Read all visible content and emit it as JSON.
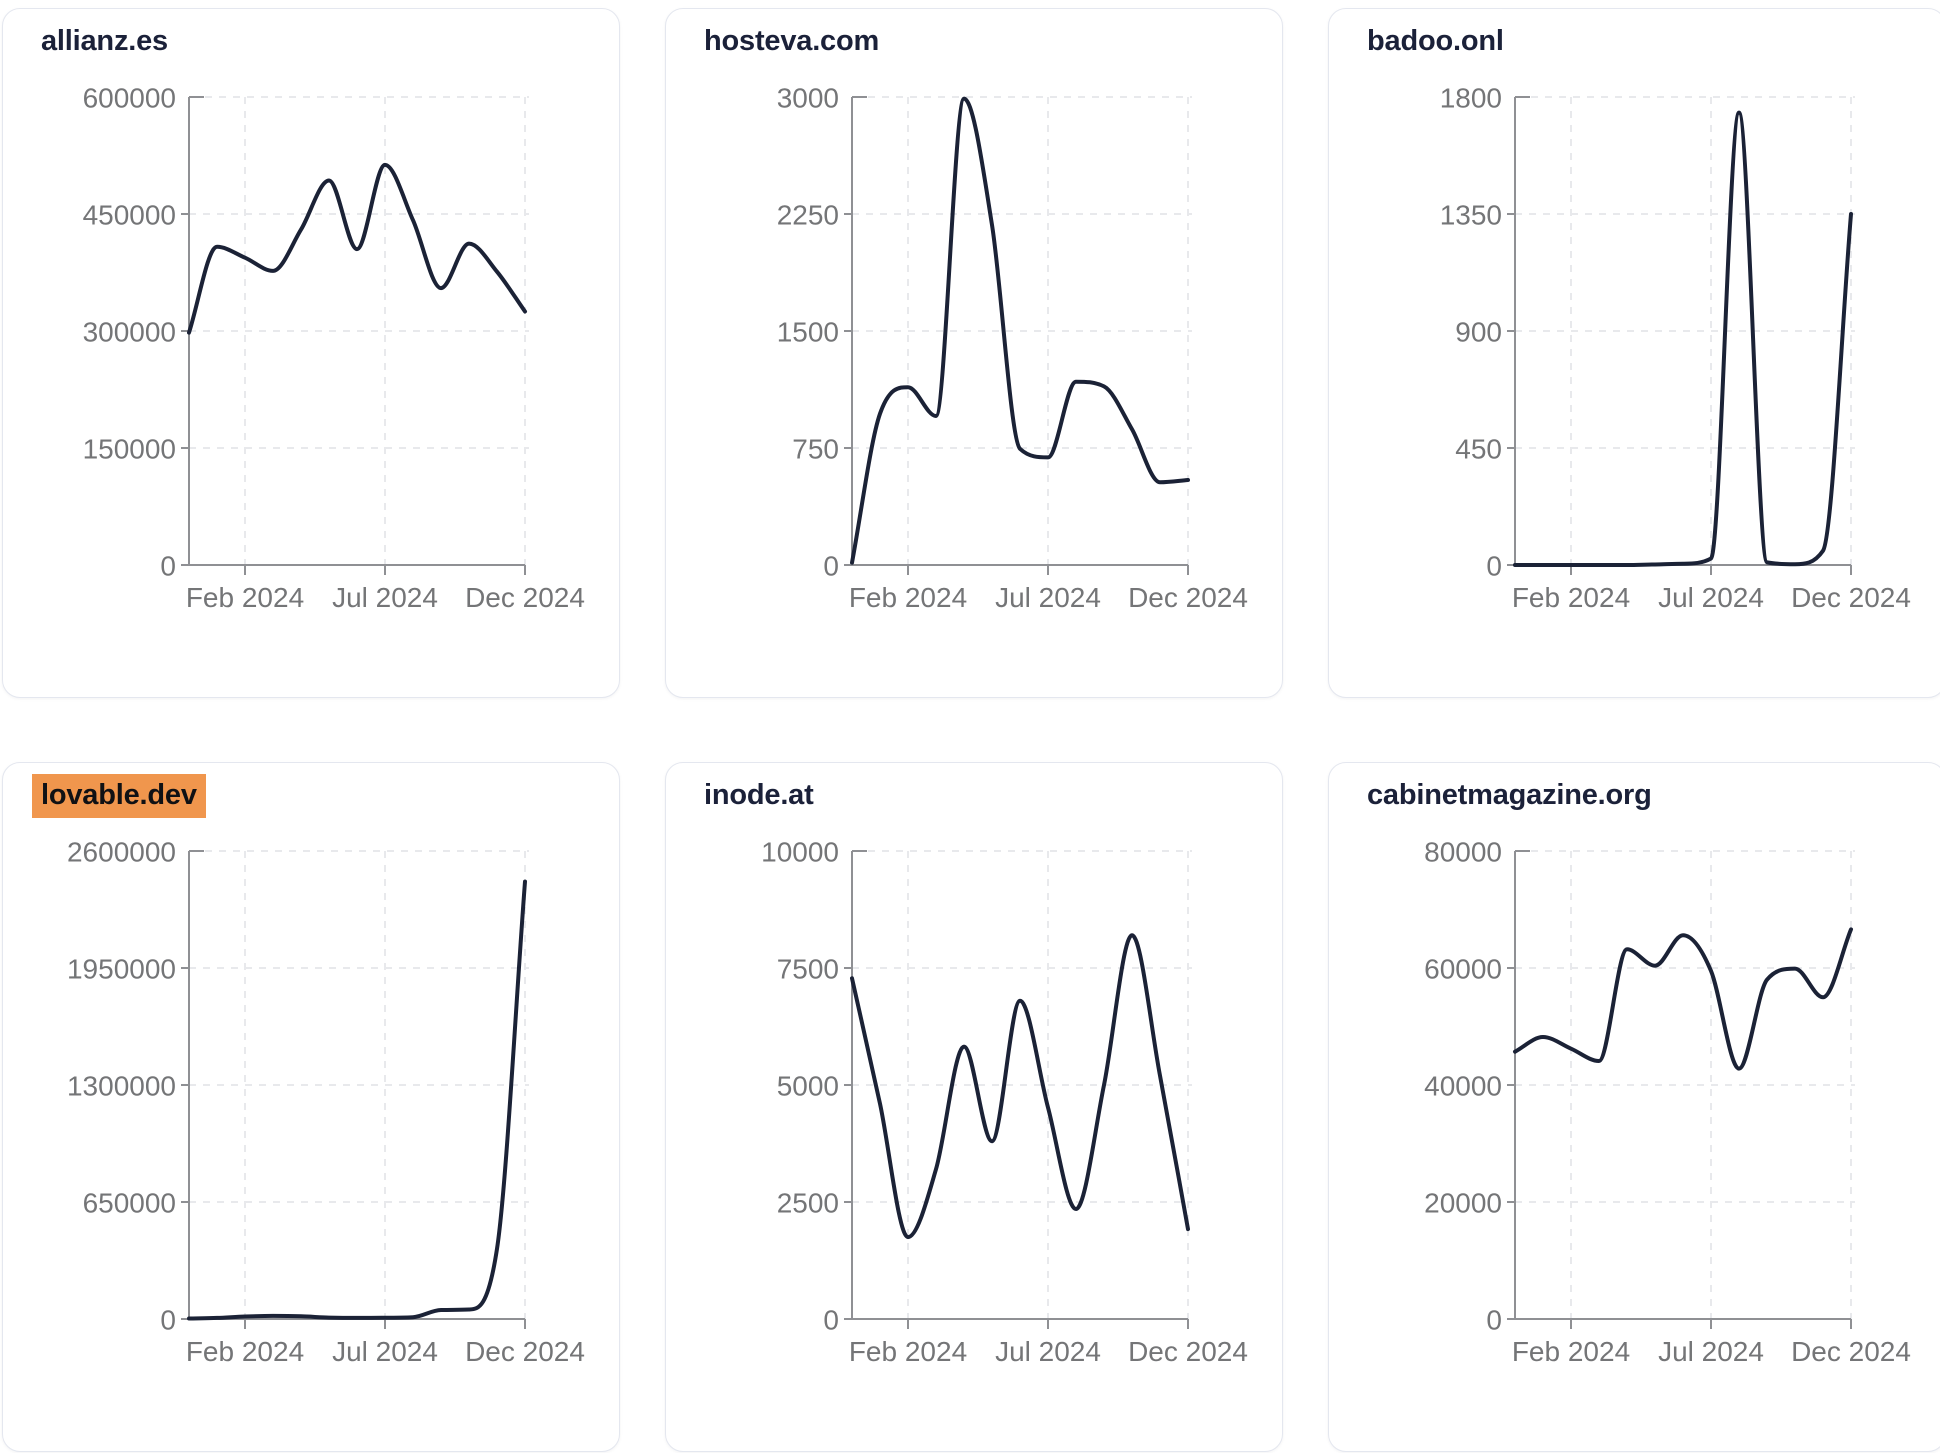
{
  "style": {
    "page_bg": "#ffffff",
    "card_bg": "#ffffff",
    "card_border": "#e4e7ef",
    "title_color": "#1b2139",
    "line_color": "#1b2236",
    "axis_color": "#8f9094",
    "grid_color": "#e8e9ec",
    "tick_label_color": "#747577",
    "highlight_bg": "#f0964d",
    "highlight_text": "#101114"
  },
  "chart_data": [
    {
      "type": "line",
      "title": "allianz.es",
      "title_highlighted": false,
      "x_range_months": [
        "2023-12",
        "2024-12"
      ],
      "months": [
        "2023-12",
        "2024-01",
        "2024-02",
        "2024-03",
        "2024-04",
        "2024-05",
        "2024-06",
        "2024-07",
        "2024-08",
        "2024-09",
        "2024-10",
        "2024-11",
        "2024-12"
      ],
      "values": [
        298000,
        408000,
        394000,
        377000,
        430000,
        493000,
        405000,
        513000,
        442000,
        355000,
        412000,
        376000,
        325000
      ],
      "ylim": [
        0,
        600000
      ],
      "y_ticks": [
        0,
        150000,
        300000,
        450000,
        600000
      ],
      "x_tick_labels": [
        "Feb 2024",
        "Jul 2024",
        "Dec 2024"
      ],
      "x_tick_month_index": [
        2,
        7,
        12
      ],
      "grid": true,
      "legend": "none"
    },
    {
      "type": "line",
      "title": "hosteva.com",
      "title_highlighted": false,
      "x_range_months": [
        "2023-12",
        "2024-12"
      ],
      "months": [
        "2023-12",
        "2024-01",
        "2024-02",
        "2024-03",
        "2024-04",
        "2024-05",
        "2024-06",
        "2024-07",
        "2024-08",
        "2024-09",
        "2024-10",
        "2024-11",
        "2024-12"
      ],
      "values": [
        15,
        970,
        1140,
        955,
        2990,
        2180,
        745,
        690,
        1175,
        1145,
        870,
        530,
        545
      ],
      "ylim": [
        0,
        3000
      ],
      "y_ticks": [
        0,
        750,
        1500,
        2250,
        3000
      ],
      "x_tick_labels": [
        "Feb 2024",
        "Jul 2024",
        "Dec 2024"
      ],
      "x_tick_month_index": [
        2,
        7,
        12
      ],
      "grid": true,
      "legend": "none"
    },
    {
      "type": "line",
      "title": "badoo.onl",
      "title_highlighted": false,
      "x_range_months": [
        "2023-12",
        "2024-12"
      ],
      "months": [
        "2023-12",
        "2024-01",
        "2024-02",
        "2024-03",
        "2024-04",
        "2024-05",
        "2024-06",
        "2024-07",
        "2024-08",
        "2024-09",
        "2024-10",
        "2024-11",
        "2024-12"
      ],
      "values": [
        0,
        0,
        0,
        0,
        0,
        2,
        5,
        25,
        1740,
        10,
        3,
        55,
        1350
      ],
      "ylim": [
        0,
        1800
      ],
      "y_ticks": [
        0,
        450,
        900,
        1350,
        1800
      ],
      "x_tick_labels": [
        "Feb 2024",
        "Jul 2024",
        "Dec 2024"
      ],
      "x_tick_month_index": [
        2,
        7,
        12
      ],
      "grid": true,
      "legend": "none"
    },
    {
      "type": "line",
      "title": "lovable.dev",
      "title_highlighted": true,
      "x_range_months": [
        "2023-12",
        "2024-12"
      ],
      "months": [
        "2023-12",
        "2024-01",
        "2024-02",
        "2024-03",
        "2024-04",
        "2024-05",
        "2024-06",
        "2024-07",
        "2024-08",
        "2024-09",
        "2024-10",
        "2024-11",
        "2024-12"
      ],
      "values": [
        3000,
        6000,
        14000,
        17000,
        15000,
        8000,
        6000,
        7000,
        10000,
        50000,
        53000,
        390000,
        2430000
      ],
      "ylim": [
        0,
        2600000
      ],
      "y_ticks": [
        0,
        650000,
        1300000,
        1950000,
        2600000
      ],
      "x_tick_labels": [
        "Feb 2024",
        "Jul 2024",
        "Dec 2024"
      ],
      "x_tick_month_index": [
        2,
        7,
        12
      ],
      "grid": true,
      "legend": "none"
    },
    {
      "type": "line",
      "title": "inode.at",
      "title_highlighted": false,
      "x_range_months": [
        "2023-12",
        "2024-12"
      ],
      "months": [
        "2023-12",
        "2024-01",
        "2024-02",
        "2024-03",
        "2024-04",
        "2024-05",
        "2024-06",
        "2024-07",
        "2024-08",
        "2024-09",
        "2024-10",
        "2024-11",
        "2024-12"
      ],
      "values": [
        7280,
        4600,
        1750,
        3200,
        5820,
        3800,
        6800,
        4520,
        2350,
        5000,
        8200,
        5200,
        1920
      ],
      "ylim": [
        0,
        10000
      ],
      "y_ticks": [
        0,
        2500,
        5000,
        7500,
        10000
      ],
      "x_tick_labels": [
        "Feb 2024",
        "Jul 2024",
        "Dec 2024"
      ],
      "x_tick_month_index": [
        2,
        7,
        12
      ],
      "grid": true,
      "legend": "none"
    },
    {
      "type": "line",
      "title": "cabinetmagazine.org",
      "title_highlighted": false,
      "x_range_months": [
        "2023-12",
        "2024-12"
      ],
      "months": [
        "2023-12",
        "2024-01",
        "2024-02",
        "2024-03",
        "2024-04",
        "2024-05",
        "2024-06",
        "2024-07",
        "2024-08",
        "2024-09",
        "2024-10",
        "2024-11",
        "2024-12"
      ],
      "values": [
        45700,
        48200,
        46200,
        44100,
        63200,
        60400,
        65600,
        59500,
        42800,
        58000,
        59900,
        55000,
        66600
      ],
      "ylim": [
        0,
        80000
      ],
      "y_ticks": [
        0,
        20000,
        40000,
        60000,
        80000
      ],
      "x_tick_labels": [
        "Feb 2024",
        "Jul 2024",
        "Dec 2024"
      ],
      "x_tick_month_index": [
        2,
        7,
        12
      ],
      "grid": true,
      "legend": "none"
    }
  ]
}
